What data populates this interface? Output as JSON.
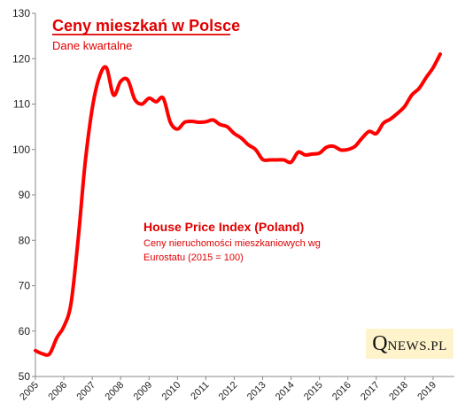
{
  "chart_data": {
    "type": "line",
    "title": "Ceny mieszkań w Polsce",
    "subtitle": "Dane kwartalne",
    "annotation": {
      "title": "House Price Index (Poland)",
      "line1": "Ceny nieruchomości mieszkaniowych wg",
      "line2": "Eurostatu (2015 = 100)"
    },
    "brand": {
      "first": "Q",
      "rest": "NEWS.PL"
    },
    "ylim": [
      50,
      130
    ],
    "yticks": [
      "50",
      "60",
      "70",
      "80",
      "90",
      "100",
      "110",
      "120",
      "130"
    ],
    "xticks": [
      "2005",
      "2006",
      "2007",
      "2008",
      "2009",
      "2010",
      "2011",
      "2012",
      "2013",
      "2014",
      "2015",
      "2016",
      "2017",
      "2018",
      "2019"
    ],
    "xlim": [
      2005,
      2019.75
    ],
    "grid": false,
    "line_color": "#ff0000",
    "series": [
      {
        "x": [
          2005.0,
          2005.25,
          2005.5,
          2005.75,
          2006.0,
          2006.25,
          2006.5,
          2006.75,
          2007.0,
          2007.25,
          2007.5,
          2007.75,
          2008.0,
          2008.25,
          2008.5,
          2008.75,
          2009.0,
          2009.25,
          2009.5,
          2009.75,
          2010.0,
          2010.25,
          2010.5,
          2010.75,
          2011.0,
          2011.25,
          2011.5,
          2011.75,
          2012.0,
          2012.25,
          2012.5,
          2012.75,
          2013.0,
          2013.25,
          2013.5,
          2013.75,
          2014.0,
          2014.25,
          2014.5,
          2014.75,
          2015.0,
          2015.25,
          2015.5,
          2015.75,
          2016.0,
          2016.25,
          2016.5,
          2016.75,
          2017.0,
          2017.25,
          2017.5,
          2017.75,
          2018.0,
          2018.25,
          2018.5,
          2018.75,
          2019.0,
          2019.25
        ],
        "values": [
          55.7,
          55.0,
          55.0,
          58.5,
          61.0,
          66.0,
          80.0,
          97.0,
          109.0,
          116.0,
          118.0,
          112.0,
          115.0,
          115.3,
          111.0,
          110.0,
          111.3,
          110.5,
          111.3,
          106.0,
          104.5,
          106.0,
          106.2,
          106.0,
          106.1,
          106.5,
          105.5,
          105.0,
          103.5,
          102.5,
          101.0,
          100.0,
          97.8,
          97.7,
          97.7,
          97.7,
          97.2,
          99.4,
          98.8,
          99.0,
          99.2,
          100.5,
          100.7,
          99.9,
          100.0,
          100.7,
          102.5,
          104.0,
          103.5,
          105.8,
          106.7,
          108.0,
          109.5,
          112.0,
          113.4,
          115.8,
          118.0,
          121.0
        ]
      }
    ]
  }
}
